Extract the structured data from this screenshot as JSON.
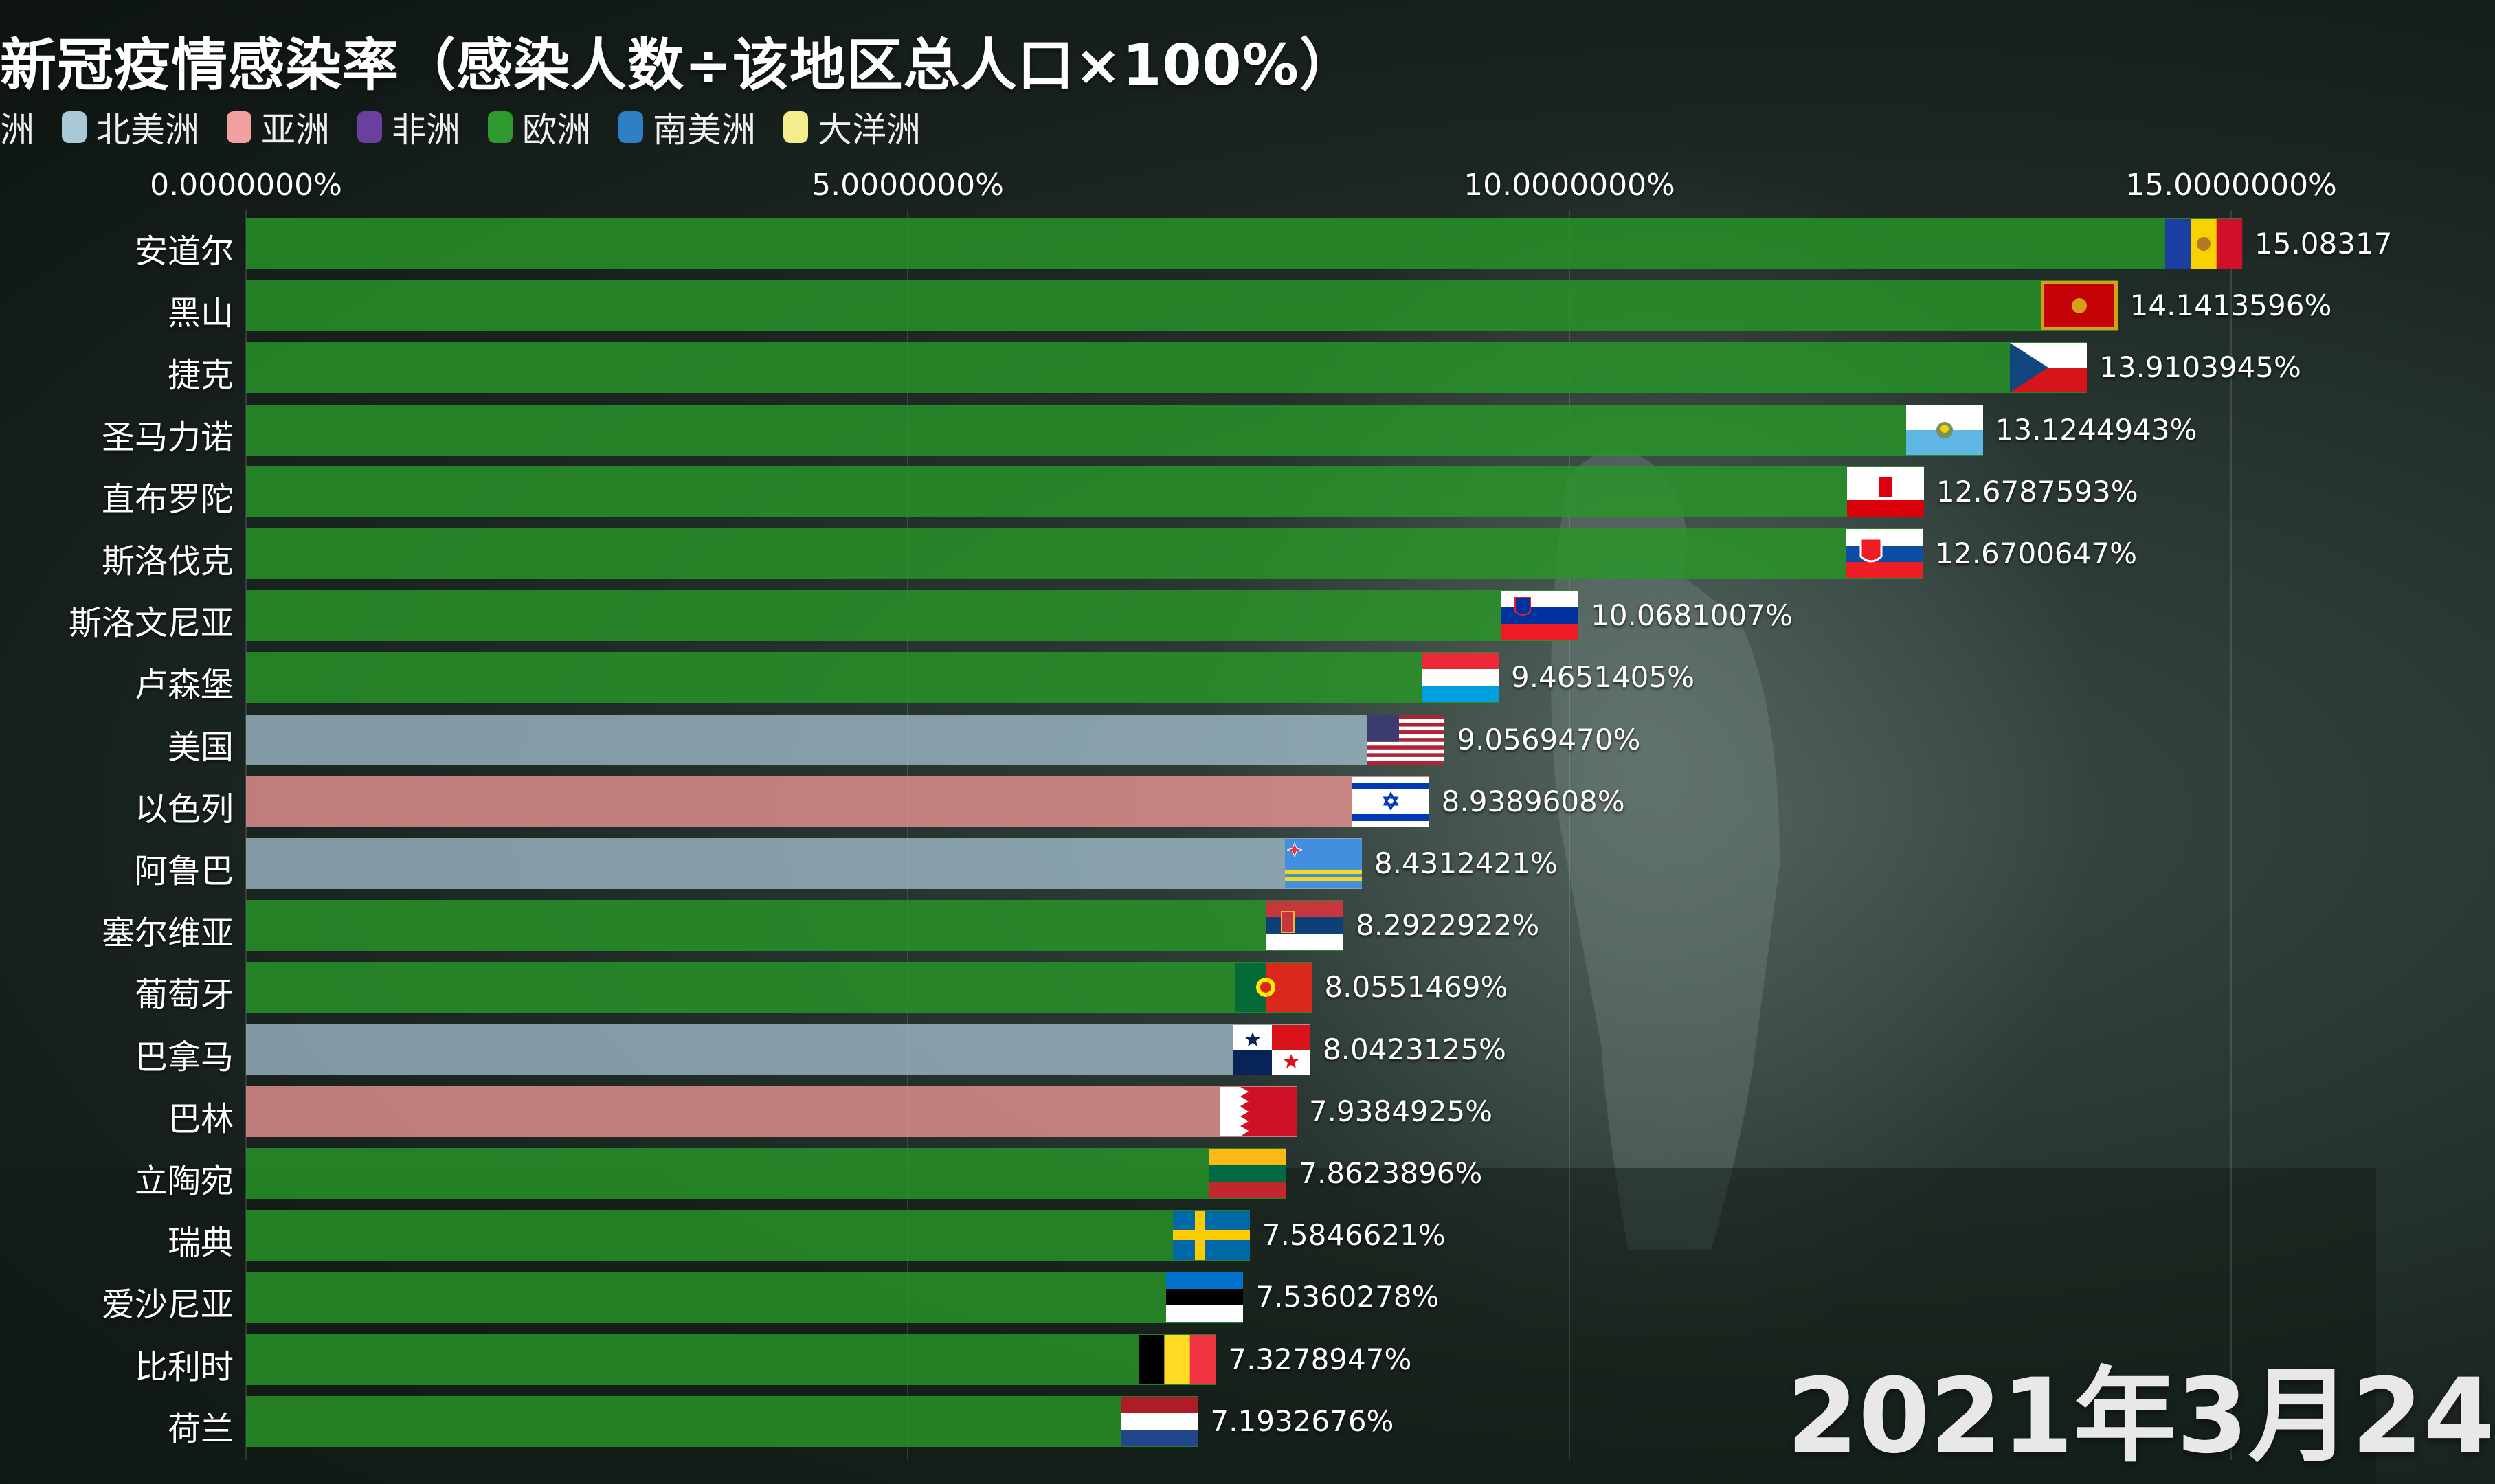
{
  "title": "新冠疫情感染率（感染人数÷该地区总人口×100%）",
  "legend": {
    "cut_label": "洲",
    "items": [
      {
        "name": "北美洲",
        "color": "#a9c8d8"
      },
      {
        "name": "亚洲",
        "color": "#f2a0a0"
      },
      {
        "name": "非洲",
        "color": "#6a3fa0"
      },
      {
        "name": "欧洲",
        "color": "#2f9a2f"
      },
      {
        "name": "南美洲",
        "color": "#2f7fc4"
      },
      {
        "name": "大洋洲",
        "color": "#f5ec8c"
      }
    ]
  },
  "date_label": "2021年3月24",
  "chart_data": {
    "type": "bar",
    "orientation": "horizontal",
    "title": "新冠疫情感染率（感染人数÷该地区总人口×100%）",
    "xlim": [
      0,
      15
    ],
    "x_ticks": [
      0,
      5,
      10,
      15
    ],
    "x_tick_labels": [
      "0.0000000%",
      "5.0000000%",
      "10.0000000%",
      "15.0000000%"
    ],
    "grid": true,
    "legend_position": "top-left",
    "categories": [
      "安道尔",
      "黑山",
      "捷克",
      "圣马力诺",
      "直布罗陀",
      "斯洛伐克",
      "斯洛文尼亚",
      "卢森堡",
      "美国",
      "以色列",
      "阿鲁巴",
      "塞尔维亚",
      "葡萄牙",
      "巴拿马",
      "巴林",
      "立陶宛",
      "瑞典",
      "爱沙尼亚",
      "比利时",
      "荷兰"
    ],
    "values": [
      15.08317,
      14.1413596,
      13.9103945,
      13.1244943,
      12.6787593,
      12.6700647,
      10.0681007,
      9.4651405,
      9.056947,
      8.9389608,
      8.4312421,
      8.2922922,
      8.0551469,
      8.0423125,
      7.9384925,
      7.8623896,
      7.5846621,
      7.5360278,
      7.3278947,
      7.1932676
    ],
    "value_labels": [
      "15.08317",
      "14.1413596%",
      "13.9103945%",
      "13.1244943%",
      "12.6787593%",
      "12.6700647%",
      "10.0681007%",
      "9.4651405%",
      "9.0569470%",
      "8.9389608%",
      "8.4312421%",
      "8.2922922%",
      "8.0551469%",
      "8.0423125%",
      "7.9384925%",
      "7.8623896%",
      "7.5846621%",
      "7.5360278%",
      "7.3278947%",
      "7.1932676%"
    ],
    "continents": [
      "欧洲",
      "欧洲",
      "欧洲",
      "欧洲",
      "欧洲",
      "欧洲",
      "欧洲",
      "欧洲",
      "北美洲",
      "亚洲",
      "北美洲",
      "欧洲",
      "欧洲",
      "北美洲",
      "亚洲",
      "欧洲",
      "欧洲",
      "欧洲",
      "欧洲",
      "欧洲"
    ],
    "flags": [
      "andorra",
      "montenegro",
      "czech",
      "san-marino",
      "gibraltar",
      "slovakia",
      "slovenia",
      "luxembourg",
      "usa",
      "israel",
      "aruba",
      "serbia",
      "portugal",
      "panama",
      "bahrain",
      "lithuania",
      "sweden",
      "estonia",
      "belgium",
      "netherlands"
    ]
  }
}
